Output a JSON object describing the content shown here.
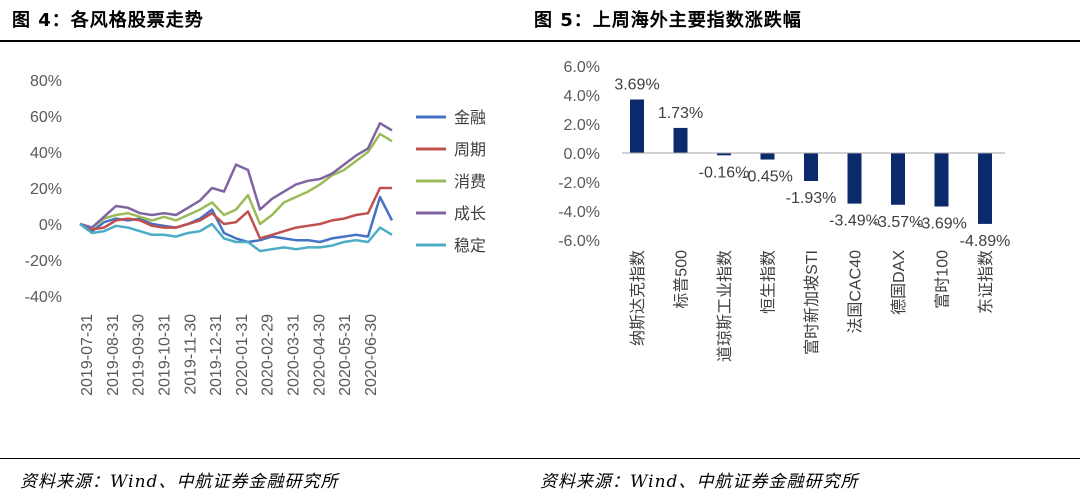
{
  "left": {
    "title": "图 4：各风格股票走势",
    "source": "资料来源：Wind、中航证券金融研究所",
    "chart_data": {
      "type": "line",
      "title": "各风格股票走势",
      "ylim": [
        -40,
        80
      ],
      "yticks": [
        80,
        60,
        40,
        20,
        0,
        -20,
        -40
      ],
      "ytick_labels": [
        "80%",
        "60%",
        "40%",
        "20%",
        "0%",
        "-20%",
        "-40%"
      ],
      "x_labels": [
        "2019-07-31",
        "2019-08-31",
        "2019-09-30",
        "2019-10-31",
        "2019-11-30",
        "2019-12-31",
        "2020-01-31",
        "2020-02-29",
        "2020-03-31",
        "2020-04-30",
        "2020-05-31",
        "2020-06-30"
      ],
      "legend_position": "right",
      "series": [
        {
          "name": "金融",
          "color": "#4472C4",
          "values": [
            0,
            -4,
            1,
            3,
            2,
            3,
            0,
            -1,
            -2,
            0,
            3,
            8,
            -5,
            -8,
            -10,
            -9,
            -7,
            -8,
            -9,
            -9,
            -10,
            -8,
            -7,
            -6,
            -7,
            15,
            2
          ]
        },
        {
          "name": "周期",
          "color": "#C0504D",
          "values": [
            0,
            -3,
            -2,
            2,
            3,
            2,
            -1,
            -2,
            -2,
            0,
            2,
            6,
            0,
            1,
            7,
            -8,
            -6,
            -4,
            -2,
            -1,
            0,
            2,
            3,
            5,
            6,
            20,
            20
          ]
        },
        {
          "name": "消费",
          "color": "#9BBB59",
          "values": [
            0,
            -2,
            3,
            5,
            6,
            4,
            2,
            4,
            2,
            5,
            8,
            12,
            5,
            8,
            16,
            0,
            5,
            12,
            15,
            18,
            22,
            27,
            30,
            35,
            40,
            50,
            46
          ]
        },
        {
          "name": "成长",
          "color": "#8064A2",
          "values": [
            0,
            -2,
            4,
            10,
            9,
            6,
            5,
            6,
            5,
            9,
            13,
            20,
            18,
            33,
            30,
            8,
            14,
            18,
            22,
            24,
            25,
            28,
            33,
            38,
            42,
            56,
            52
          ]
        },
        {
          "name": "稳定",
          "color": "#4BACC6",
          "values": [
            0,
            -5,
            -4,
            -1,
            -2,
            -4,
            -6,
            -6,
            -7,
            -5,
            -4,
            0,
            -8,
            -10,
            -10,
            -15,
            -14,
            -13,
            -14,
            -13,
            -13,
            -12,
            -10,
            -9,
            -10,
            -2,
            -6
          ]
        }
      ]
    }
  },
  "right": {
    "title": "图 5：上周海外主要指数涨跌幅",
    "source": "资料来源：Wind、中航证券金融研究所",
    "chart_data": {
      "type": "bar",
      "title": "上周海外主要指数涨跌幅",
      "categories": [
        "纳斯达克指数",
        "标普500",
        "道琼斯工业指数",
        "恒生指数",
        "富时新加坡STI",
        "法国CAC40",
        "德国DAX",
        "富时100",
        "东证指数"
      ],
      "values": [
        3.69,
        1.73,
        -0.16,
        -0.45,
        -1.93,
        -3.49,
        -3.57,
        -3.69,
        -4.89
      ],
      "value_labels": [
        "3.69%",
        "1.73%",
        "-0.16%",
        "-0.45%",
        "-1.93%",
        "-3.49%",
        "-3.57%",
        "-3.69%",
        "-4.89%"
      ],
      "ylim": [
        -6,
        6
      ],
      "yticks": [
        6,
        4,
        2,
        0,
        -2,
        -4,
        -6
      ],
      "ytick_labels": [
        "6.0%",
        "4.0%",
        "2.0%",
        "0.0%",
        "-2.0%",
        "-4.0%",
        "-6.0%"
      ],
      "bar_color": "#0B2A6B"
    }
  }
}
